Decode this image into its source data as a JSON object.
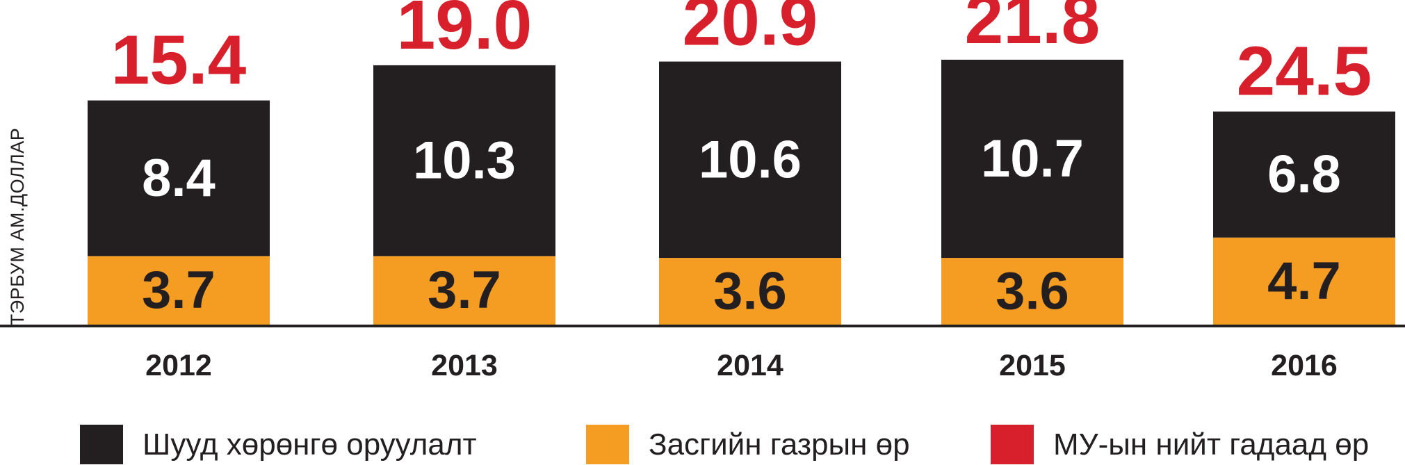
{
  "chart_data": {
    "type": "bar",
    "stacked": true,
    "ylabel": "ТЭРБУМ АМ.ДОЛЛАР",
    "categories": [
      "2012",
      "2013",
      "2014",
      "2015",
      "2016"
    ],
    "series": [
      {
        "name": "Засгийн газрын өр",
        "color": "#f59c23",
        "values": [
          3.7,
          3.7,
          3.6,
          3.6,
          4.7
        ]
      },
      {
        "name": "Шууд хөрөнгө оруулалт",
        "color": "#231f20",
        "values": [
          8.4,
          10.3,
          10.6,
          10.7,
          6.8
        ]
      }
    ],
    "totals": {
      "name": "МУ-ын нийт гадаад өр",
      "color": "#d7202c",
      "values": [
        15.4,
        19.0,
        20.9,
        21.8,
        24.5
      ],
      "labels": [
        "15.4",
        "19.0",
        "20.9",
        "21.8",
        "24.5"
      ]
    },
    "value_labels": {
      "Засгийн газрын өр": [
        "3.7",
        "3.7",
        "3.6",
        "3.6",
        "4.7"
      ],
      "Шууд хөрөнгө оруулалт": [
        "8.4",
        "10.3",
        "10.6",
        "10.7",
        "6.8"
      ]
    },
    "legend": [
      {
        "label": "Шууд хөрөнгө оруулалт",
        "color": "#231f20"
      },
      {
        "label": "Засгийн газрын өр",
        "color": "#f59c23"
      },
      {
        "label": "МУ-ын нийт гадаад өр",
        "color": "#d7202c"
      }
    ],
    "legend_position": "bottom",
    "grid": false
  }
}
